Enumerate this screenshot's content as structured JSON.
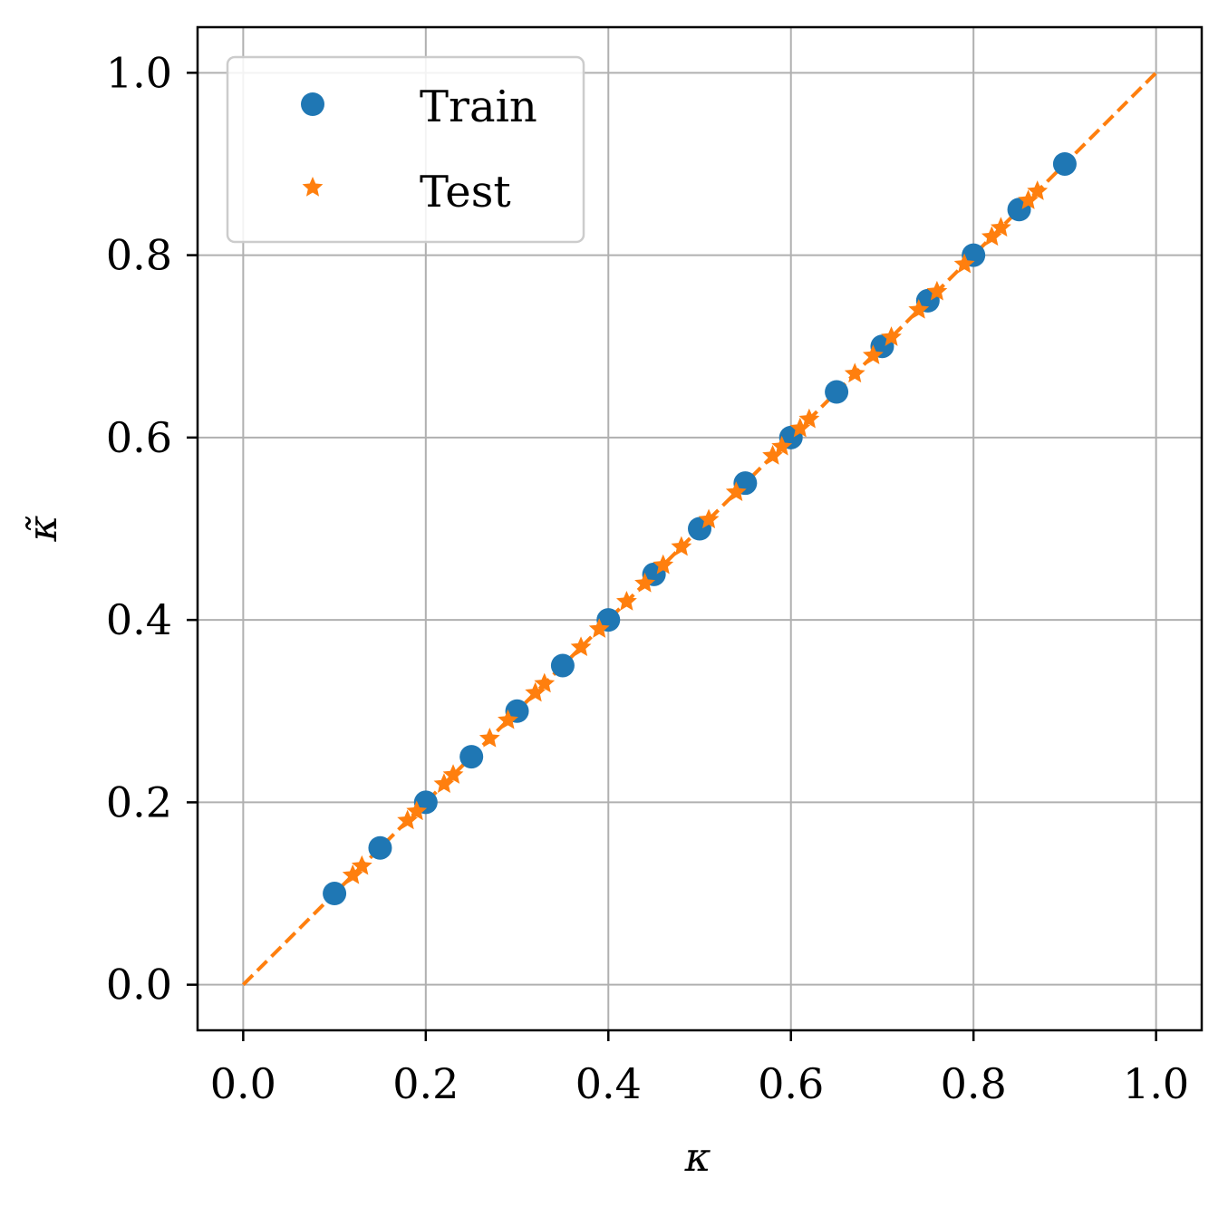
{
  "chart_data": {
    "type": "scatter",
    "xlabel": "κ",
    "ylabel": "κ̃",
    "xlim": [
      -0.05,
      1.05
    ],
    "ylim": [
      -0.05,
      1.05
    ],
    "xticks": [
      "0.0",
      "0.2",
      "0.4",
      "0.6",
      "0.8",
      "1.0"
    ],
    "yticks": [
      "0.0",
      "0.2",
      "0.4",
      "0.6",
      "0.8",
      "1.0"
    ],
    "grid": true,
    "legend_position": "top-left",
    "series": [
      {
        "name": "Train",
        "marker": "circle",
        "color": "#1f77b4",
        "x": [
          0.1,
          0.15,
          0.2,
          0.25,
          0.3,
          0.35,
          0.4,
          0.45,
          0.5,
          0.55,
          0.6,
          0.65,
          0.7,
          0.75,
          0.8,
          0.85,
          0.9
        ],
        "y": [
          0.1,
          0.15,
          0.2,
          0.25,
          0.3,
          0.35,
          0.4,
          0.45,
          0.5,
          0.55,
          0.6,
          0.65,
          0.7,
          0.75,
          0.8,
          0.85,
          0.9
        ]
      },
      {
        "name": "Test",
        "marker": "star",
        "color": "#ff7f0e",
        "x": [
          0.12,
          0.13,
          0.18,
          0.19,
          0.22,
          0.23,
          0.27,
          0.29,
          0.32,
          0.33,
          0.37,
          0.39,
          0.42,
          0.44,
          0.46,
          0.48,
          0.51,
          0.54,
          0.58,
          0.59,
          0.61,
          0.62,
          0.67,
          0.69,
          0.71,
          0.74,
          0.76,
          0.79,
          0.82,
          0.83,
          0.86,
          0.87
        ],
        "y": [
          0.12,
          0.13,
          0.18,
          0.19,
          0.22,
          0.23,
          0.27,
          0.29,
          0.32,
          0.33,
          0.37,
          0.39,
          0.42,
          0.44,
          0.46,
          0.48,
          0.51,
          0.54,
          0.58,
          0.59,
          0.61,
          0.62,
          0.67,
          0.69,
          0.71,
          0.74,
          0.76,
          0.79,
          0.82,
          0.83,
          0.86,
          0.87
        ]
      }
    ],
    "reference_line": {
      "style": "dashed",
      "color": "#ff7f0e",
      "x": [
        0.0,
        1.0
      ],
      "y": [
        0.0,
        1.0
      ]
    }
  }
}
